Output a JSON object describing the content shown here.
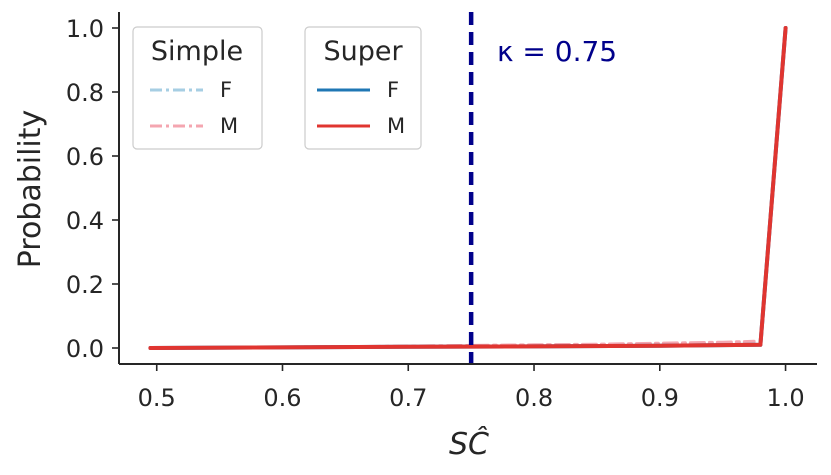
{
  "chart_data": {
    "type": "line",
    "xlabel": "SĈ",
    "ylabel": "Probability",
    "xlim": [
      0.47,
      1.025
    ],
    "ylim": [
      -0.05,
      1.05
    ],
    "xticks": [
      0.5,
      0.6,
      0.7,
      0.8,
      0.9,
      1.0
    ],
    "xtick_labels": [
      "0.5",
      "0.6",
      "0.7",
      "0.8",
      "0.9",
      "1.0"
    ],
    "yticks": [
      0.0,
      0.2,
      0.4,
      0.6,
      0.8,
      1.0
    ],
    "ytick_labels": [
      "0.0",
      "0.2",
      "0.4",
      "0.6",
      "0.8",
      "1.0"
    ],
    "grid": false,
    "vline": {
      "x": 0.75,
      "color": "#00008b",
      "style": "dashed",
      "label": "κ = 0.75"
    },
    "legends": [
      {
        "title": "Simple",
        "entries": [
          "F",
          "M"
        ]
      },
      {
        "title": "Super",
        "entries": [
          "F",
          "M"
        ]
      }
    ],
    "series": [
      {
        "group": "Simple",
        "name": "F",
        "color": "#a6cee3",
        "style": "dashdot",
        "x": [
          0.495,
          0.55,
          0.6,
          0.65,
          0.7,
          0.75,
          0.8,
          0.85,
          0.9,
          0.95,
          0.975
        ],
        "y": [
          0.0,
          0.001,
          0.002,
          0.003,
          0.005,
          0.007,
          0.009,
          0.011,
          0.013,
          0.016,
          0.018
        ]
      },
      {
        "group": "Simple",
        "name": "M",
        "color": "#f4a6b0",
        "style": "dashdot",
        "x": [
          0.495,
          0.55,
          0.6,
          0.65,
          0.7,
          0.75,
          0.8,
          0.85,
          0.9,
          0.95,
          0.975
        ],
        "y": [
          0.0,
          0.001,
          0.003,
          0.004,
          0.006,
          0.008,
          0.01,
          0.012,
          0.015,
          0.018,
          0.021
        ]
      },
      {
        "group": "Super",
        "name": "F",
        "color": "#1f77b4",
        "style": "solid",
        "x": [
          0.495,
          0.6,
          0.7,
          0.8,
          0.9,
          0.98,
          1.0
        ],
        "y": [
          0.0,
          0.002,
          0.004,
          0.005,
          0.007,
          0.01,
          1.0
        ]
      },
      {
        "group": "Super",
        "name": "M",
        "color": "#e03530",
        "style": "solid",
        "x": [
          0.495,
          0.6,
          0.7,
          0.8,
          0.9,
          0.98,
          1.0
        ],
        "y": [
          0.0,
          0.002,
          0.004,
          0.005,
          0.007,
          0.01,
          1.0
        ]
      }
    ]
  }
}
